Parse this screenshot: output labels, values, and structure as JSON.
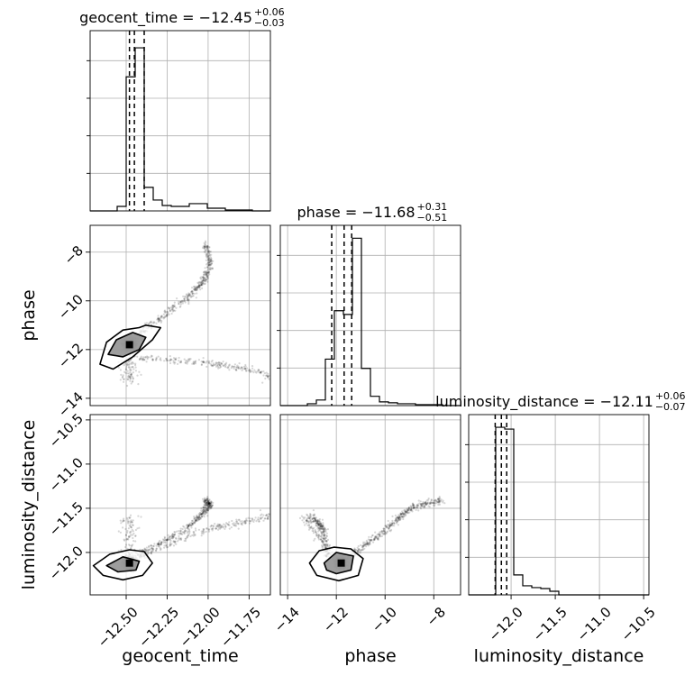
{
  "chart_data": {
    "type": "corner",
    "parameters": [
      "geocent_time",
      "phase",
      "luminosity_distance"
    ],
    "titles": [
      {
        "parameter": "geocent_time",
        "prefix": "geocent_time = ",
        "median": "−12.45",
        "plus": "+0.06",
        "minus": "−0.03"
      },
      {
        "parameter": "phase",
        "prefix": "phase = ",
        "median": "−11.68",
        "plus": "+0.31",
        "minus": "−0.51"
      },
      {
        "parameter": "luminosity_distance",
        "prefix": "luminosity_distance = ",
        "median": "−12.11",
        "plus": "+0.06",
        "minus": "−0.07"
      }
    ],
    "axis_labels": [
      "geocent_time",
      "phase",
      "luminosity_distance"
    ],
    "ranges": {
      "geocent_time": [
        -12.72,
        -11.62
      ],
      "phase": [
        -14.3,
        -6.9
      ],
      "luminosity_distance": [
        -12.48,
        -10.44
      ]
    },
    "ticks": {
      "geocent_time": [
        {
          "v": -12.5,
          "label": "−12.50"
        },
        {
          "v": -12.25,
          "label": "−12.25"
        },
        {
          "v": -12.0,
          "label": "−12.00"
        },
        {
          "v": -11.75,
          "label": "−11.75"
        }
      ],
      "phase": [
        {
          "v": -14,
          "label": "−14"
        },
        {
          "v": -12,
          "label": "−12"
        },
        {
          "v": -10,
          "label": "−10"
        },
        {
          "v": -8,
          "label": "−8"
        }
      ],
      "luminosity_distance": [
        {
          "v": -12.0,
          "label": "−12.0"
        },
        {
          "v": -11.5,
          "label": "−11.5"
        },
        {
          "v": -11.0,
          "label": "−11.0"
        },
        {
          "v": -10.5,
          "label": "−10.5"
        }
      ]
    },
    "quantiles": {
      "geocent_time": [
        -12.48,
        -12.45,
        -12.39
      ],
      "phase": [
        -12.19,
        -11.68,
        -11.37
      ],
      "luminosity_distance": [
        -12.18,
        -12.11,
        -12.05
      ]
    },
    "histograms": {
      "geocent_time": {
        "edges": [
          -12.72,
          -12.665,
          -12.61,
          -12.555,
          -12.5,
          -12.445,
          -12.39,
          -12.335,
          -12.28,
          -12.225,
          -12.17,
          -12.115,
          -12.06,
          -12.005,
          -11.95,
          -11.895,
          -11.84,
          -11.785,
          -11.73,
          -11.675,
          -11.62
        ],
        "counts": [
          0,
          0,
          0,
          5,
          148,
          180,
          26,
          12,
          6,
          5,
          5,
          8,
          8,
          3,
          3,
          1,
          1,
          1,
          0,
          0
        ],
        "max": 195
      },
      "phase": {
        "edges": [
          -14.3,
          -13.93,
          -13.56,
          -13.19,
          -12.82,
          -12.45,
          -12.08,
          -11.71,
          -11.34,
          -10.97,
          -10.6,
          -10.23,
          -9.86,
          -9.49,
          -9.12,
          -8.75,
          -8.38,
          -8.01,
          -7.64,
          -7.27,
          -6.9
        ],
        "counts": [
          0,
          0,
          0,
          2,
          6,
          50,
          102,
          98,
          180,
          40,
          10,
          4,
          3,
          2,
          2,
          1,
          1,
          1,
          0,
          0
        ],
        "max": 190
      },
      "luminosity_distance": {
        "edges": [
          -12.48,
          -12.378,
          -12.276,
          -12.174,
          -12.072,
          -11.97,
          -11.868,
          -11.766,
          -11.664,
          -11.562,
          -11.46,
          -11.358,
          -11.256,
          -11.154,
          -11.052,
          -10.95,
          -10.848,
          -10.746,
          -10.644,
          -10.542,
          -10.44
        ],
        "counts": [
          0,
          0,
          0,
          185,
          183,
          22,
          10,
          8,
          7,
          4,
          0,
          0,
          0,
          0,
          0,
          0,
          0,
          0,
          0,
          0
        ],
        "max": 195
      }
    },
    "samples": {
      "cluster": {
        "geocent_time": -12.48,
        "phase": -11.8,
        "luminosity_distance": -12.12
      },
      "curve_upper": {
        "geocent_time": [
          -12.45,
          -12.35,
          -12.25,
          -12.15,
          -12.08,
          -12.03,
          -12.0,
          -11.99,
          -12.0,
          -12.02
        ],
        "phase": [
          -11.5,
          -11.0,
          -10.5,
          -10.0,
          -9.6,
          -9.2,
          -8.8,
          -8.4,
          -8.0,
          -7.7
        ],
        "luminosity_distance": [
          -12.05,
          -11.95,
          -11.85,
          -11.75,
          -11.65,
          -11.55,
          -11.48,
          -11.45,
          -11.43,
          -11.42
        ]
      },
      "curve_lower": {
        "geocent_time": [
          -12.42,
          -12.3,
          -12.2,
          -12.1,
          -12.0,
          -11.9,
          -11.8,
          -11.7,
          -11.62
        ],
        "phase": [
          -12.35,
          -12.4,
          -12.45,
          -12.5,
          -12.55,
          -12.65,
          -12.75,
          -12.9,
          -13.1
        ],
        "luminosity_distance": [
          -12.05,
          -11.95,
          -11.88,
          -11.8,
          -11.74,
          -11.7,
          -11.66,
          -11.62,
          -11.58
        ]
      },
      "curve_side": {
        "phase": [
          -12.2,
          -12.5,
          -12.8,
          -13.1,
          -13.3
        ],
        "luminosity_distance": [
          -12.05,
          -11.95,
          -11.8,
          -11.68,
          -11.6
        ]
      }
    },
    "contours": {
      "geocent_time-phase": [
        {
          "level": "outer",
          "x": [
            -12.66,
            -12.62,
            -12.52,
            -12.42,
            -12.38,
            -12.29,
            -12.34,
            -12.46,
            -12.58
          ],
          "y": [
            -12.6,
            -11.7,
            -11.2,
            -11.1,
            -11.0,
            -11.1,
            -11.6,
            -12.3,
            -12.8
          ]
        },
        {
          "level": "inner",
          "x": [
            -12.61,
            -12.56,
            -12.46,
            -12.38,
            -12.42,
            -12.52
          ],
          "y": [
            -12.2,
            -11.6,
            -11.3,
            -11.5,
            -12.0,
            -12.3
          ]
        }
      ],
      "geocent_time-luminosity_distance": [
        {
          "level": "outer",
          "x": [
            -12.7,
            -12.6,
            -12.48,
            -12.39,
            -12.34,
            -12.4,
            -12.52,
            -12.64
          ],
          "y": [
            -12.15,
            -12.02,
            -11.97,
            -11.99,
            -12.12,
            -12.26,
            -12.31,
            -12.26
          ]
        },
        {
          "level": "inner",
          "x": [
            -12.62,
            -12.52,
            -12.42,
            -12.44,
            -12.55
          ],
          "y": [
            -12.15,
            -12.05,
            -12.1,
            -12.2,
            -12.22
          ]
        }
      ],
      "phase-luminosity_distance": [
        {
          "level": "outer",
          "x": [
            -13.1,
            -12.7,
            -12.1,
            -11.4,
            -10.9,
            -11.1,
            -11.9,
            -12.8
          ],
          "y": [
            -12.12,
            -11.98,
            -11.94,
            -11.96,
            -12.07,
            -12.26,
            -12.32,
            -12.26
          ]
        },
        {
          "level": "inner",
          "x": [
            -12.5,
            -12.0,
            -11.3,
            -11.4,
            -12.0,
            -12.4
          ],
          "y": [
            -12.12,
            -12.0,
            -12.04,
            -12.2,
            -12.24,
            -12.2
          ]
        }
      ]
    },
    "grid": true
  }
}
